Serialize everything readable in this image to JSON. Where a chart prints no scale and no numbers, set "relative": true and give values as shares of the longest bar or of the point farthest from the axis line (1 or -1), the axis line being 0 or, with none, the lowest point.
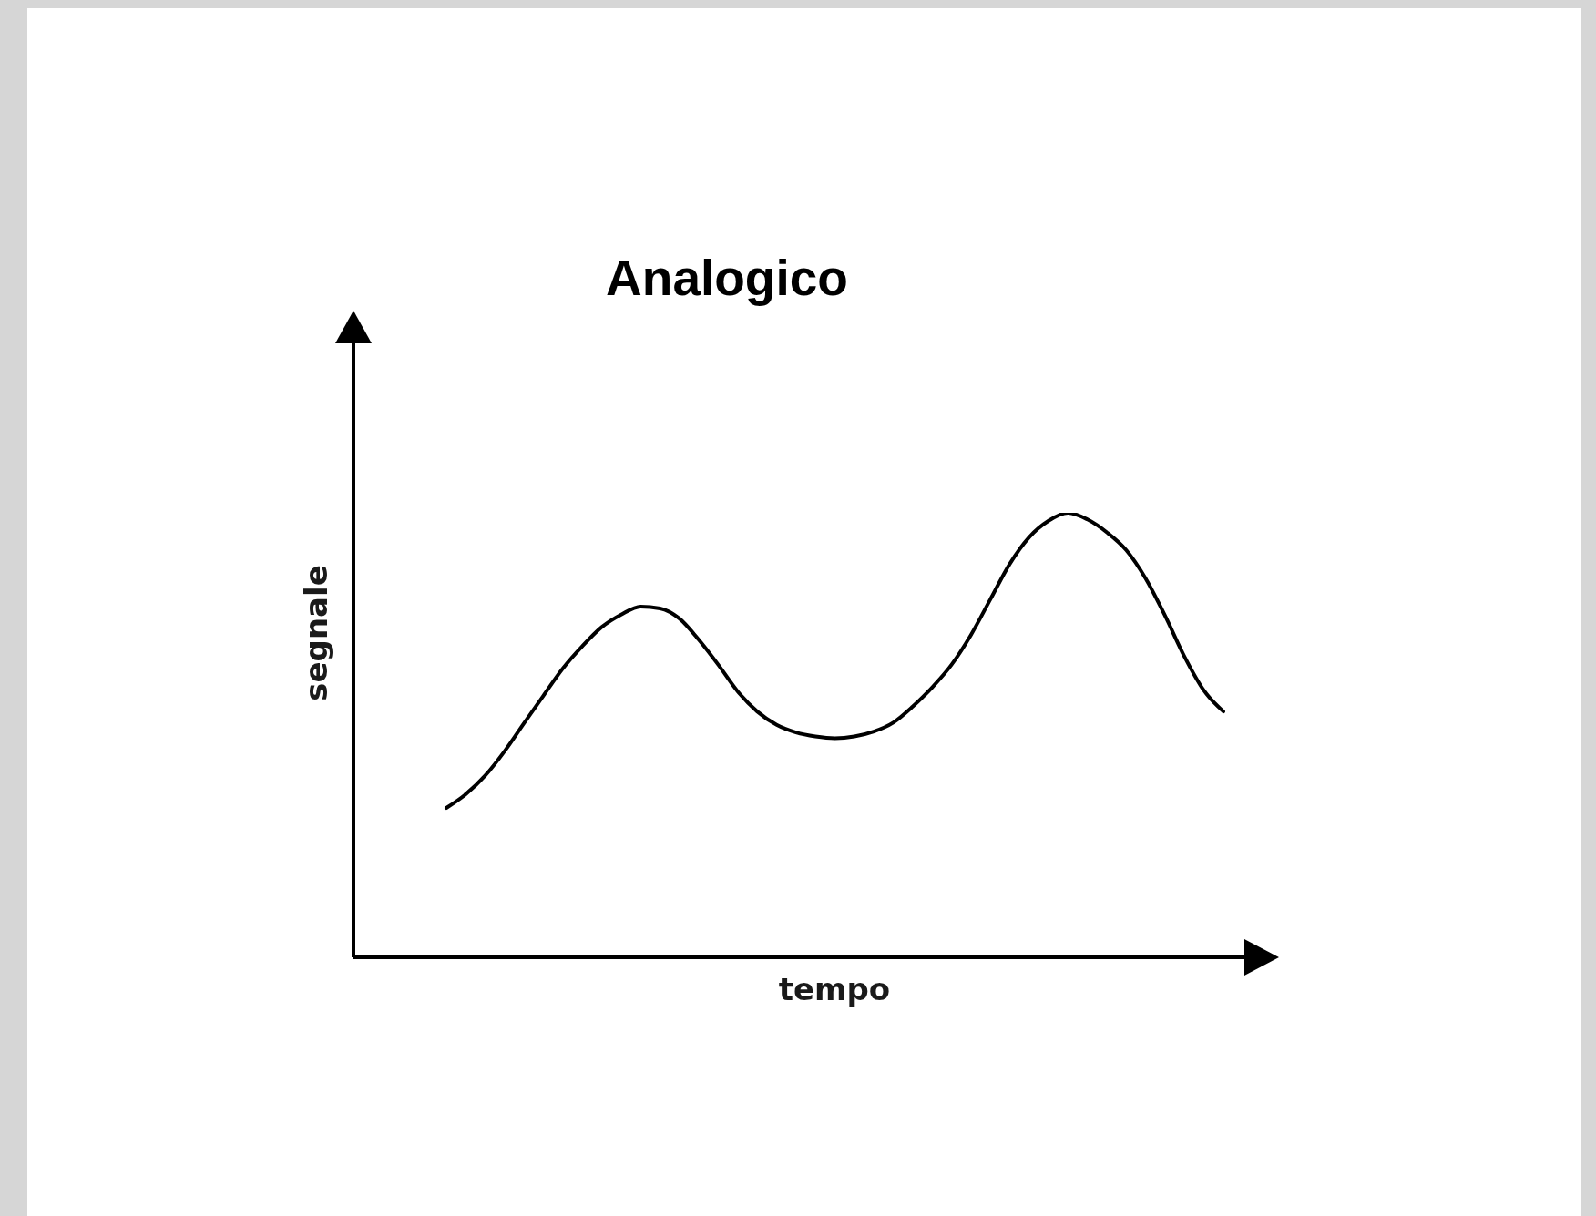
{
  "chart_data": {
    "type": "line",
    "title": "Analogico",
    "xlabel": "tempo",
    "ylabel": "segnale",
    "relative": true,
    "categories": [
      null,
      null,
      null,
      null,
      null,
      null,
      null,
      null,
      null,
      null,
      null,
      null,
      null,
      null,
      null,
      null,
      null,
      null,
      null,
      null,
      null,
      null,
      null,
      null,
      null,
      null,
      null,
      null,
      null,
      null,
      null,
      null,
      null,
      null,
      null,
      null,
      null,
      null,
      null,
      null,
      null
    ],
    "values": [
      0.336,
      0.367,
      0.409,
      0.464,
      0.527,
      0.589,
      0.65,
      0.7,
      0.743,
      0.771,
      0.789,
      0.785,
      0.762,
      0.714,
      0.658,
      0.598,
      0.553,
      0.523,
      0.506,
      0.497,
      0.493,
      0.497,
      0.508,
      0.528,
      0.564,
      0.607,
      0.658,
      0.725,
      0.805,
      0.885,
      0.945,
      0.982,
      1,
      0.985,
      0.956,
      0.916,
      0.852,
      0.768,
      0.676,
      0.6,
      0.553
    ],
    "color": "#000000",
    "marker": "none"
  }
}
